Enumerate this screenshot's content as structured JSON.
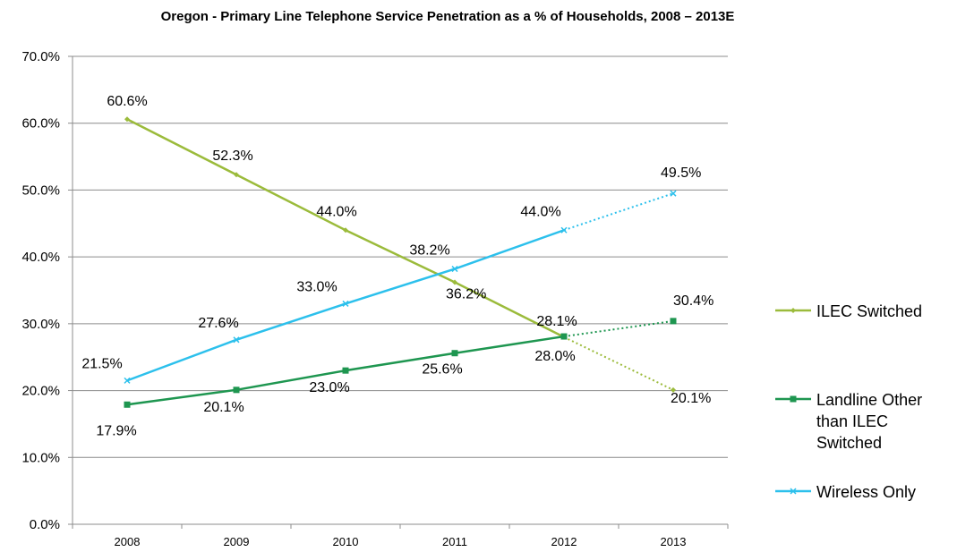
{
  "chart_data": {
    "type": "line",
    "title": "Oregon - Primary Line Telephone Service Penetration as a % of Households, 2008 – 2013E",
    "xlabel": "",
    "ylabel": "",
    "categories": [
      "2008",
      "2009",
      "2010",
      "2011",
      "2012",
      "2013"
    ],
    "ylim": [
      0,
      70
    ],
    "y_ticks": [
      0,
      10,
      20,
      30,
      40,
      50,
      60,
      70
    ],
    "y_tick_labels": [
      "0.0%",
      "10.0%",
      "20.0%",
      "30.0%",
      "40.0%",
      "50.0%",
      "60.0%",
      "70.0%"
    ],
    "grid": true,
    "legend_position": "right",
    "projected_from_index": 4,
    "series": [
      {
        "name": "ILEC Switched",
        "legend_lines": [
          "ILEC Switched"
        ],
        "color": "#9bbb3b",
        "marker": "diamond",
        "values": [
          60.6,
          52.3,
          44.0,
          36.2,
          28.0,
          20.1
        ],
        "labels": [
          "60.6%",
          "52.3%",
          "44.0%",
          "36.2%",
          "28.0%",
          "20.1%"
        ]
      },
      {
        "name": "Landline Other than ILEC Switched",
        "legend_lines": [
          "Landline Other",
          "than ILEC",
          "Switched"
        ],
        "color": "#1e9650",
        "marker": "square",
        "values": [
          17.9,
          20.1,
          23.0,
          25.6,
          28.1,
          30.4
        ],
        "labels": [
          "17.9%",
          "20.1%",
          "23.0%",
          "25.6%",
          "28.1%",
          "30.4%"
        ]
      },
      {
        "name": "Wireless Only",
        "legend_lines": [
          "Wireless Only"
        ],
        "color": "#2cc0ec",
        "marker": "x",
        "values": [
          21.5,
          27.6,
          33.0,
          38.2,
          44.0,
          49.5
        ],
        "labels": [
          "21.5%",
          "27.6%",
          "33.0%",
          "38.2%",
          "44.0%",
          "49.5%"
        ]
      }
    ]
  }
}
